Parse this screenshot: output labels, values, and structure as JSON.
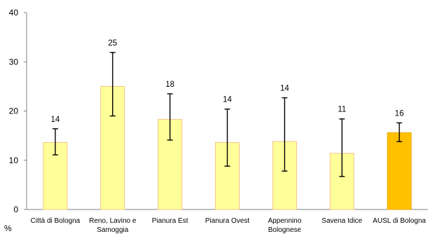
{
  "chart_data": {
    "type": "bar",
    "title": "",
    "xlabel": "",
    "ylabel": "%",
    "ylim": [
      0,
      40
    ],
    "yticks": [
      0,
      10,
      20,
      30,
      40
    ],
    "grid": false,
    "legend": "none",
    "categories": [
      [
        "Città di Bologna"
      ],
      [
        "Reno, Lavino e",
        "Samoggia"
      ],
      [
        "Pianura Est"
      ],
      [
        "Pianura Ovest"
      ],
      [
        "Appennino",
        "Bolognese"
      ],
      [
        "Savena Idice"
      ],
      [
        "AUSL di Bologna"
      ]
    ],
    "values": [
      13.6,
      25.0,
      18.3,
      13.6,
      13.8,
      11.4,
      15.6
    ],
    "data_labels": [
      "14",
      "25",
      "18",
      "14",
      "14",
      "11",
      "16"
    ],
    "error_low": [
      11.1,
      19.0,
      14.1,
      8.8,
      7.8,
      6.7,
      13.8
    ],
    "error_high": [
      16.4,
      31.9,
      23.5,
      20.4,
      22.7,
      18.4,
      17.6
    ],
    "colors": {
      "bar_fill": "#ffff99",
      "bar_stroke": "#f2c48a",
      "highlight_fill": "#ffc000",
      "highlight_stroke": "#e6a800",
      "error_bar": "#000000",
      "axis": "#808080"
    },
    "highlight_index": 6
  }
}
